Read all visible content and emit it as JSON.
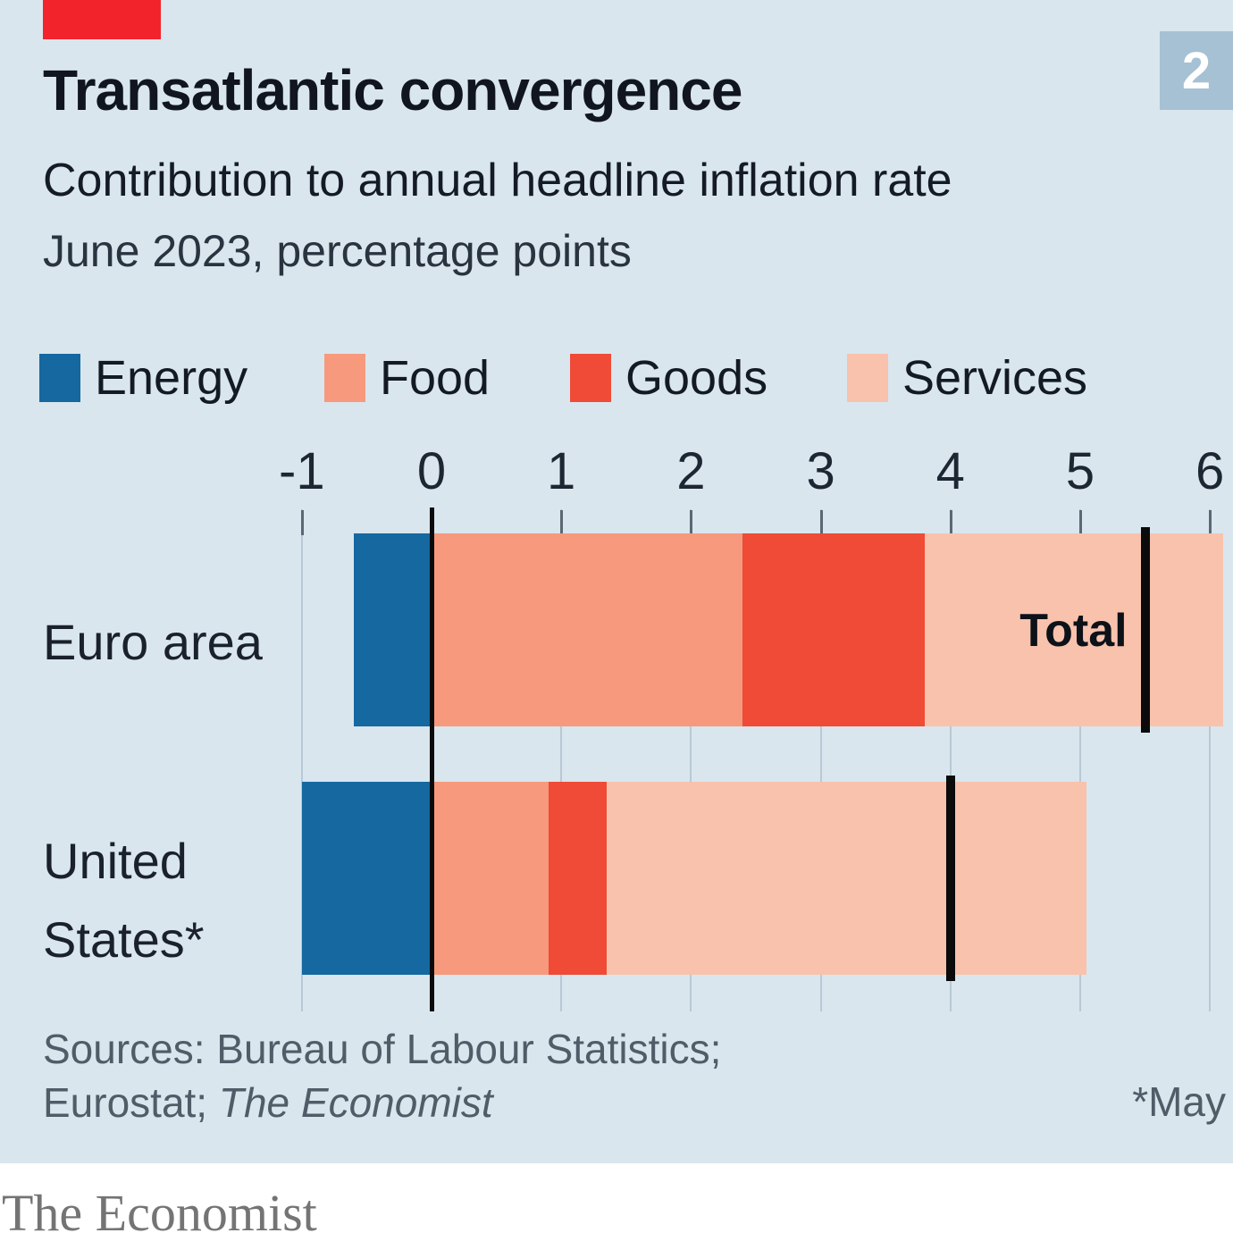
{
  "header": {
    "badge_number": "2",
    "title": "Transatlantic convergence",
    "subtitle": "Contribution to annual headline inflation rate",
    "period_label": "June 2023, percentage points"
  },
  "legend": [
    {
      "label": "Energy",
      "color": "#1568a0"
    },
    {
      "label": "Food",
      "color": "#f7997c"
    },
    {
      "label": "Goods",
      "color": "#ef4b37"
    },
    {
      "label": "Services",
      "color": "#f9c2ac"
    }
  ],
  "chart_data": {
    "type": "bar",
    "orientation": "horizontal-stacked",
    "title": "Transatlantic convergence",
    "subtitle": "Contribution to annual headline inflation rate",
    "unit": "percentage points",
    "period": "June 2023",
    "categories": [
      "Euro area",
      "United States*"
    ],
    "series": [
      {
        "name": "Energy",
        "color": "#1568a0",
        "values": [
          -0.6,
          -1.0
        ]
      },
      {
        "name": "Food",
        "color": "#f7997c",
        "values": [
          2.4,
          0.9
        ]
      },
      {
        "name": "Goods",
        "color": "#ef4b37",
        "values": [
          1.4,
          0.45
        ]
      },
      {
        "name": "Services",
        "color": "#f9c2ac",
        "values": [
          2.3,
          3.7
        ]
      }
    ],
    "totals": [
      5.5,
      4.0
    ],
    "total_label": "Total",
    "x_ticks": [
      -1,
      0,
      1,
      2,
      3,
      4,
      5,
      6
    ],
    "xlim": [
      -1,
      6.2
    ],
    "grid": true,
    "legend_position": "top"
  },
  "rows": [
    {
      "label_lines": [
        "Euro area"
      ]
    },
    {
      "label_lines": [
        "United",
        "States*"
      ]
    }
  ],
  "footer": {
    "sources_line1": "Sources: Bureau of Labour Statistics;",
    "sources_line2_prefix": "Eurostat; ",
    "sources_line2_italic": "The Economist",
    "footnote": "*May",
    "logo_text": "The Economist"
  },
  "colors": {
    "background": "#d9e6ee",
    "accent_red": "#f3232b",
    "badge_blue": "#a6c1d3",
    "energy": "#1568a0",
    "food": "#f7997c",
    "goods": "#ef4b37",
    "services": "#f9c2ac",
    "gridline": "#b8c9d5",
    "zero_line": "#0a0a0a",
    "text_dark": "#10151f",
    "text_muted": "#505c68"
  }
}
